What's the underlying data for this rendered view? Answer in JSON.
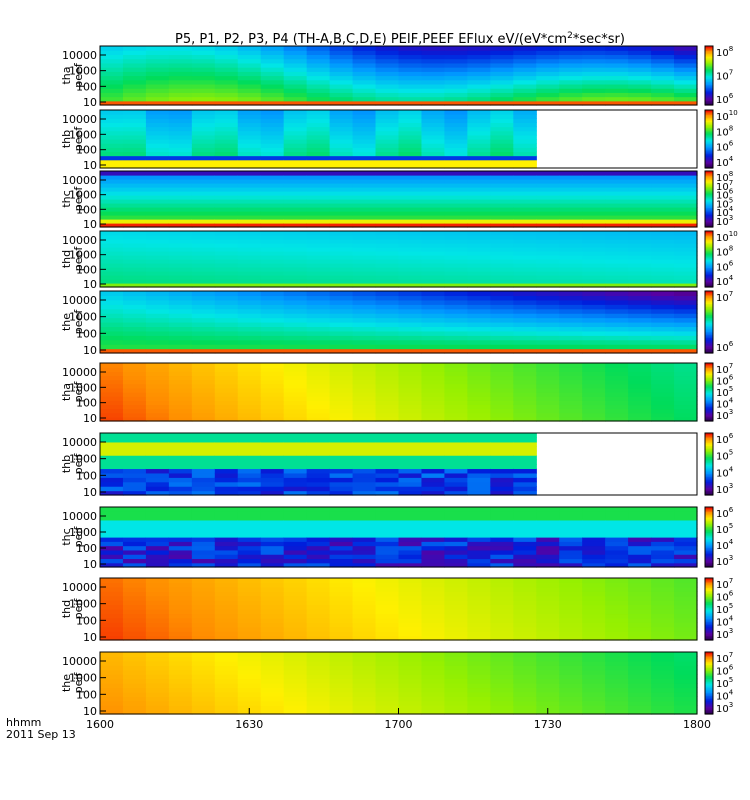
{
  "chart_data": {
    "type": "heatmap",
    "title": "P5, P1, P2, P3, P4 (TH-A,B,C,D,E) PEIF,PEEF EFlux eV/(eV*cm",
    "title_sup": "2",
    "title_end": "*sec*sr)",
    "time_label": "hhmm",
    "date_label": "2011 Sep 13",
    "x_ticks": [
      "1600",
      "1630",
      "1700",
      "1730",
      "1800"
    ],
    "x_range": [
      1600,
      1800
    ],
    "y_scale": "log",
    "y_ticks": [
      "10",
      "100",
      "1000",
      "10000"
    ],
    "colorscale": "rainbow (purple-blue-cyan-green-yellow-red)",
    "panels": [
      {
        "probe": "tha",
        "species": "peef",
        "cbar_ticks": [
          "10^8",
          "10^7",
          "10^6"
        ],
        "data_end_frac": 1.0,
        "trend": "eflux decreasing with energy; bright band below 30 eV"
      },
      {
        "probe": "thb",
        "species": "peef",
        "cbar_ticks": [
          "10^10",
          "10^8",
          "10^6",
          "10^4"
        ],
        "data_end_frac": 0.74,
        "trend": "flat in time; data gap after ~1725"
      },
      {
        "probe": "thc",
        "species": "peef",
        "cbar_ticks": [
          "10^8",
          "10^7",
          "10^6",
          "10^5",
          "10^4",
          "10^3"
        ],
        "data_end_frac": 1.0,
        "trend": "red band at lowest energies"
      },
      {
        "probe": "thd",
        "species": "peef",
        "cbar_ticks": [
          "10^10",
          "10^8",
          "10^6",
          "10^4"
        ],
        "data_end_frac": 1.0,
        "trend": "mostly green/cyan, nearly constant"
      },
      {
        "probe": "the",
        "species": "peef",
        "cbar_ticks": [
          "10^7",
          "10^6"
        ],
        "data_end_frac": 1.0,
        "trend": "similar to tha"
      },
      {
        "probe": "tha",
        "species": "peif",
        "cbar_ticks": [
          "10^7",
          "10^6",
          "10^5",
          "10^4",
          "10^3"
        ],
        "data_end_frac": 1.0,
        "trend": "red at 1600, fading to green by 1800"
      },
      {
        "probe": "thb",
        "species": "peif",
        "cbar_ticks": [
          "10^6",
          "10^5",
          "10^4",
          "10^3"
        ],
        "data_end_frac": 0.74,
        "trend": "yellow band near 1000 eV; gap after ~1725"
      },
      {
        "probe": "thc",
        "species": "peif",
        "cbar_ticks": [
          "10^6",
          "10^5",
          "10^4",
          "10^3"
        ],
        "data_end_frac": 1.0,
        "trend": "green band at high energy, dark blue noise below"
      },
      {
        "probe": "thd",
        "species": "peif",
        "cbar_ticks": [
          "10^7",
          "10^6",
          "10^5",
          "10^4",
          "10^3"
        ],
        "data_end_frac": 1.0,
        "trend": "red at 1600, fading to yellow/green"
      },
      {
        "probe": "the",
        "species": "peif",
        "cbar_ticks": [
          "10^7",
          "10^6",
          "10^5",
          "10^4",
          "10^3"
        ],
        "data_end_frac": 1.0,
        "trend": "orange at 1600, fading to green"
      }
    ]
  }
}
